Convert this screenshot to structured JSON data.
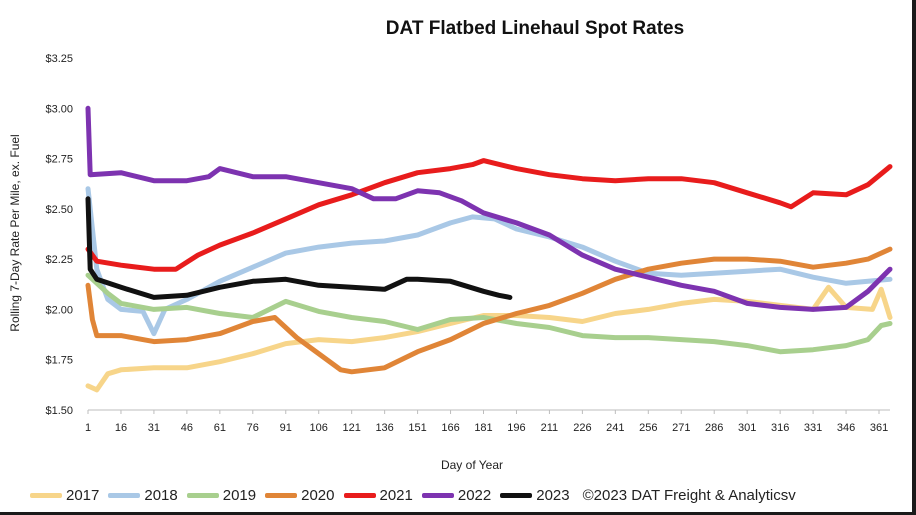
{
  "chart_data": {
    "type": "line",
    "title": "DAT Flatbed Linehaul Spot Rates",
    "xlabel": "Day of Year",
    "ylabel": "Rolling 7-Day Rate Per Mile, ex. Fuel",
    "xlim": [
      1,
      366
    ],
    "ylim": [
      1.5,
      3.25
    ],
    "xticks": [
      1,
      16,
      31,
      46,
      61,
      76,
      91,
      106,
      121,
      136,
      151,
      166,
      181,
      196,
      211,
      226,
      241,
      256,
      271,
      286,
      301,
      316,
      331,
      346,
      361
    ],
    "yticks": [
      1.5,
      1.75,
      2.0,
      2.25,
      2.5,
      2.75,
      3.0,
      3.25
    ],
    "ytick_labels": [
      "$1.50",
      "$1.75",
      "$2.00",
      "$2.25",
      "$2.50",
      "$2.75",
      "$3.00",
      "$3.25"
    ],
    "grid": false,
    "legend_position": "bottom",
    "annotation": "©2023 DAT Freight & Analyticsv",
    "series": [
      {
        "name": "2017",
        "color": "#f7d58a",
        "points": [
          [
            1,
            1.62
          ],
          [
            5,
            1.6
          ],
          [
            10,
            1.68
          ],
          [
            16,
            1.7
          ],
          [
            31,
            1.71
          ],
          [
            46,
            1.71
          ],
          [
            61,
            1.74
          ],
          [
            76,
            1.78
          ],
          [
            91,
            1.83
          ],
          [
            106,
            1.85
          ],
          [
            121,
            1.84
          ],
          [
            136,
            1.86
          ],
          [
            151,
            1.89
          ],
          [
            166,
            1.93
          ],
          [
            181,
            1.97
          ],
          [
            196,
            1.97
          ],
          [
            211,
            1.96
          ],
          [
            226,
            1.94
          ],
          [
            241,
            1.98
          ],
          [
            256,
            2.0
          ],
          [
            271,
            2.03
          ],
          [
            286,
            2.05
          ],
          [
            301,
            2.04
          ],
          [
            316,
            2.02
          ],
          [
            331,
            2.0
          ],
          [
            338,
            2.11
          ],
          [
            346,
            2.01
          ],
          [
            358,
            2.0
          ],
          [
            362,
            2.1
          ],
          [
            366,
            1.96
          ]
        ]
      },
      {
        "name": "2018",
        "color": "#a9c8e6",
        "points": [
          [
            1,
            2.6
          ],
          [
            5,
            2.2
          ],
          [
            10,
            2.05
          ],
          [
            16,
            2.0
          ],
          [
            26,
            1.99
          ],
          [
            31,
            1.88
          ],
          [
            36,
            2.0
          ],
          [
            46,
            2.05
          ],
          [
            61,
            2.14
          ],
          [
            76,
            2.21
          ],
          [
            91,
            2.28
          ],
          [
            106,
            2.31
          ],
          [
            121,
            2.33
          ],
          [
            136,
            2.34
          ],
          [
            151,
            2.37
          ],
          [
            166,
            2.43
          ],
          [
            176,
            2.46
          ],
          [
            186,
            2.45
          ],
          [
            196,
            2.4
          ],
          [
            211,
            2.36
          ],
          [
            226,
            2.31
          ],
          [
            241,
            2.24
          ],
          [
            256,
            2.18
          ],
          [
            271,
            2.17
          ],
          [
            286,
            2.18
          ],
          [
            301,
            2.19
          ],
          [
            316,
            2.2
          ],
          [
            331,
            2.16
          ],
          [
            346,
            2.13
          ],
          [
            356,
            2.14
          ],
          [
            366,
            2.15
          ]
        ]
      },
      {
        "name": "2019",
        "color": "#a8cf8e",
        "points": [
          [
            1,
            2.17
          ],
          [
            10,
            2.08
          ],
          [
            16,
            2.03
          ],
          [
            31,
            2.0
          ],
          [
            46,
            2.01
          ],
          [
            61,
            1.98
          ],
          [
            76,
            1.96
          ],
          [
            91,
            2.04
          ],
          [
            106,
            1.99
          ],
          [
            121,
            1.96
          ],
          [
            136,
            1.94
          ],
          [
            151,
            1.9
          ],
          [
            166,
            1.95
          ],
          [
            181,
            1.96
          ],
          [
            196,
            1.93
          ],
          [
            211,
            1.91
          ],
          [
            226,
            1.87
          ],
          [
            241,
            1.86
          ],
          [
            256,
            1.86
          ],
          [
            271,
            1.85
          ],
          [
            286,
            1.84
          ],
          [
            301,
            1.82
          ],
          [
            316,
            1.79
          ],
          [
            331,
            1.8
          ],
          [
            346,
            1.82
          ],
          [
            356,
            1.85
          ],
          [
            362,
            1.92
          ],
          [
            366,
            1.93
          ]
        ]
      },
      {
        "name": "2020",
        "color": "#e08537",
        "points": [
          [
            1,
            2.12
          ],
          [
            3,
            1.95
          ],
          [
            5,
            1.87
          ],
          [
            16,
            1.87
          ],
          [
            31,
            1.84
          ],
          [
            46,
            1.85
          ],
          [
            61,
            1.88
          ],
          [
            76,
            1.94
          ],
          [
            86,
            1.96
          ],
          [
            96,
            1.86
          ],
          [
            106,
            1.78
          ],
          [
            116,
            1.7
          ],
          [
            121,
            1.69
          ],
          [
            136,
            1.71
          ],
          [
            151,
            1.79
          ],
          [
            166,
            1.85
          ],
          [
            181,
            1.93
          ],
          [
            196,
            1.98
          ],
          [
            211,
            2.02
          ],
          [
            226,
            2.08
          ],
          [
            241,
            2.15
          ],
          [
            256,
            2.2
          ],
          [
            271,
            2.23
          ],
          [
            286,
            2.25
          ],
          [
            301,
            2.25
          ],
          [
            316,
            2.24
          ],
          [
            331,
            2.21
          ],
          [
            346,
            2.23
          ],
          [
            356,
            2.25
          ],
          [
            366,
            2.3
          ]
        ]
      },
      {
        "name": "2021",
        "color": "#e81c1c",
        "points": [
          [
            1,
            2.3
          ],
          [
            5,
            2.24
          ],
          [
            16,
            2.22
          ],
          [
            31,
            2.2
          ],
          [
            41,
            2.2
          ],
          [
            51,
            2.27
          ],
          [
            61,
            2.32
          ],
          [
            76,
            2.38
          ],
          [
            91,
            2.45
          ],
          [
            106,
            2.52
          ],
          [
            121,
            2.57
          ],
          [
            136,
            2.63
          ],
          [
            151,
            2.68
          ],
          [
            166,
            2.7
          ],
          [
            176,
            2.72
          ],
          [
            181,
            2.74
          ],
          [
            196,
            2.7
          ],
          [
            211,
            2.67
          ],
          [
            226,
            2.65
          ],
          [
            241,
            2.64
          ],
          [
            256,
            2.65
          ],
          [
            271,
            2.65
          ],
          [
            286,
            2.63
          ],
          [
            301,
            2.58
          ],
          [
            316,
            2.53
          ],
          [
            321,
            2.51
          ],
          [
            331,
            2.58
          ],
          [
            346,
            2.57
          ],
          [
            356,
            2.62
          ],
          [
            366,
            2.71
          ]
        ]
      },
      {
        "name": "2022",
        "color": "#7d33b0",
        "points": [
          [
            1,
            3.0
          ],
          [
            2,
            2.67
          ],
          [
            16,
            2.68
          ],
          [
            31,
            2.64
          ],
          [
            46,
            2.64
          ],
          [
            56,
            2.66
          ],
          [
            61,
            2.7
          ],
          [
            76,
            2.66
          ],
          [
            91,
            2.66
          ],
          [
            106,
            2.63
          ],
          [
            121,
            2.6
          ],
          [
            131,
            2.55
          ],
          [
            141,
            2.55
          ],
          [
            151,
            2.59
          ],
          [
            161,
            2.58
          ],
          [
            171,
            2.54
          ],
          [
            181,
            2.48
          ],
          [
            196,
            2.43
          ],
          [
            211,
            2.37
          ],
          [
            226,
            2.27
          ],
          [
            241,
            2.2
          ],
          [
            256,
            2.16
          ],
          [
            271,
            2.12
          ],
          [
            286,
            2.09
          ],
          [
            301,
            2.03
          ],
          [
            316,
            2.01
          ],
          [
            331,
            2.0
          ],
          [
            346,
            2.01
          ],
          [
            356,
            2.09
          ],
          [
            366,
            2.2
          ]
        ]
      },
      {
        "name": "2023",
        "color": "#111111",
        "points": [
          [
            1,
            2.55
          ],
          [
            2,
            2.2
          ],
          [
            5,
            2.15
          ],
          [
            16,
            2.11
          ],
          [
            31,
            2.06
          ],
          [
            46,
            2.07
          ],
          [
            61,
            2.11
          ],
          [
            76,
            2.14
          ],
          [
            91,
            2.15
          ],
          [
            106,
            2.12
          ],
          [
            121,
            2.11
          ],
          [
            136,
            2.1
          ],
          [
            146,
            2.15
          ],
          [
            151,
            2.15
          ],
          [
            166,
            2.14
          ],
          [
            181,
            2.09
          ],
          [
            188,
            2.07
          ],
          [
            193,
            2.06
          ]
        ]
      }
    ]
  }
}
